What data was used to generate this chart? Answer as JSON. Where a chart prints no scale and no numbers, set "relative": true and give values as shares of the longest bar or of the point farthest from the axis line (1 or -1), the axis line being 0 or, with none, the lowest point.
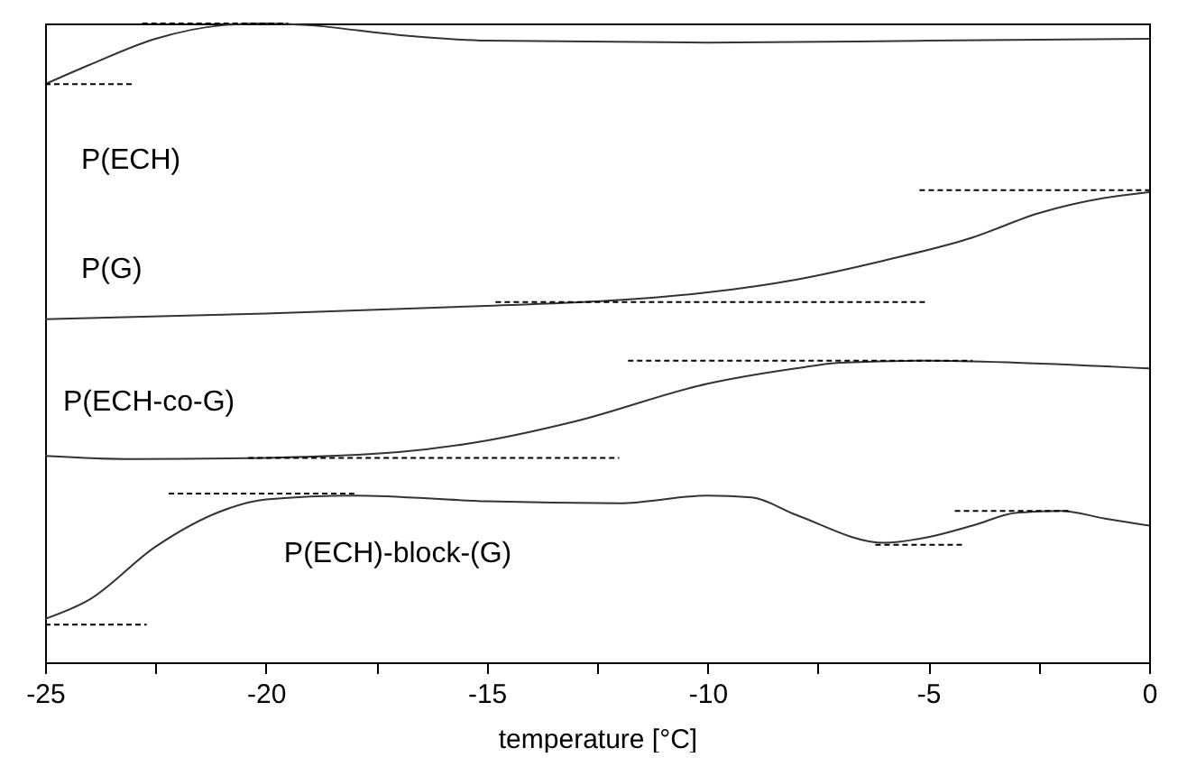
{
  "chart_data": {
    "type": "line",
    "relative": true,
    "xlabel": "temperature [°C]",
    "xlim": [
      -25,
      0
    ],
    "xticks": [
      -25,
      {
        "value": -22.5,
        "label": null
      },
      -20,
      {
        "value": -17.5,
        "label": null
      },
      -15,
      {
        "value": -12.5,
        "label": null
      },
      -10,
      {
        "value": -7.5,
        "label": null
      },
      -5,
      {
        "value": -2.5,
        "label": null
      },
      0
    ],
    "series": [
      {
        "name": "P(ECH)",
        "color": "#333333",
        "line_style": "solid",
        "x": [
          -25,
          -24,
          -22.5,
          -21,
          -20,
          -19,
          -17,
          -15,
          -10,
          -5,
          0
        ],
        "values": [
          0.905,
          0.935,
          0.976,
          0.997,
          1.0,
          0.997,
          0.982,
          0.973,
          0.97,
          0.973,
          0.976
        ]
      },
      {
        "color": "#000000",
        "line_style": "dashed",
        "x": [
          -25,
          -23
        ],
        "values": [
          0.905,
          0.905
        ]
      },
      {
        "color": "#000000",
        "line_style": "dashed",
        "x": [
          -22.8,
          -19.5
        ],
        "values": [
          1.0,
          1.0
        ]
      },
      {
        "name": "P(G)",
        "color": "#333333",
        "line_style": "solid",
        "x": [
          -25,
          -20,
          -15,
          -12,
          -10,
          -8,
          -6,
          -4,
          -2.5,
          -1,
          0
        ],
        "values": [
          0.537,
          0.546,
          0.558,
          0.567,
          0.579,
          0.599,
          0.629,
          0.665,
          0.703,
          0.727,
          0.736
        ]
      },
      {
        "color": "#000000",
        "line_style": "dashed",
        "x": [
          -14.8,
          -5
        ],
        "values": [
          0.564,
          0.564
        ]
      },
      {
        "color": "#000000",
        "line_style": "dashed",
        "x": [
          -5.2,
          0
        ],
        "values": [
          0.739,
          0.739
        ]
      },
      {
        "name": "P(ECH-co-G)",
        "color": "#333333",
        "line_style": "solid",
        "x": [
          -25,
          -23,
          -20,
          -17,
          -15,
          -13,
          -10,
          -8,
          -7,
          -5,
          -3,
          0
        ],
        "values": [
          0.323,
          0.318,
          0.32,
          0.329,
          0.347,
          0.377,
          0.436,
          0.46,
          0.469,
          0.472,
          0.469,
          0.46
        ]
      },
      {
        "color": "#000000",
        "line_style": "dashed",
        "x": [
          -20.4,
          -12
        ],
        "values": [
          0.32,
          0.32
        ]
      },
      {
        "color": "#000000",
        "line_style": "dashed",
        "x": [
          -11.8,
          -4
        ],
        "values": [
          0.472,
          0.472
        ]
      },
      {
        "name": "P(ECH)-block-(G)",
        "color": "#333333",
        "line_style": "solid",
        "x": [
          -25,
          -24,
          -22.5,
          -21,
          -20,
          -18,
          -15,
          -12,
          -10,
          -9,
          -8,
          -6,
          -5,
          -4,
          -3,
          -2,
          -1,
          0
        ],
        "values": [
          0.068,
          0.098,
          0.181,
          0.237,
          0.255,
          0.261,
          0.252,
          0.249,
          0.261,
          0.258,
          0.231,
          0.187,
          0.196,
          0.214,
          0.234,
          0.237,
          0.225,
          0.214
        ]
      },
      {
        "color": "#000000",
        "line_style": "dashed",
        "x": [
          -25,
          -22.7
        ],
        "values": [
          0.059,
          0.059
        ]
      },
      {
        "color": "#000000",
        "line_style": "dashed",
        "x": [
          -22.2,
          -18
        ],
        "values": [
          0.264,
          0.264
        ]
      },
      {
        "color": "#000000",
        "line_style": "dashed",
        "x": [
          -6.2,
          -4.2
        ],
        "values": [
          0.184,
          0.184
        ]
      },
      {
        "color": "#000000",
        "line_style": "dashed",
        "x": [
          -4.4,
          -1.8
        ],
        "values": [
          0.237,
          0.237
        ]
      }
    ]
  }
}
